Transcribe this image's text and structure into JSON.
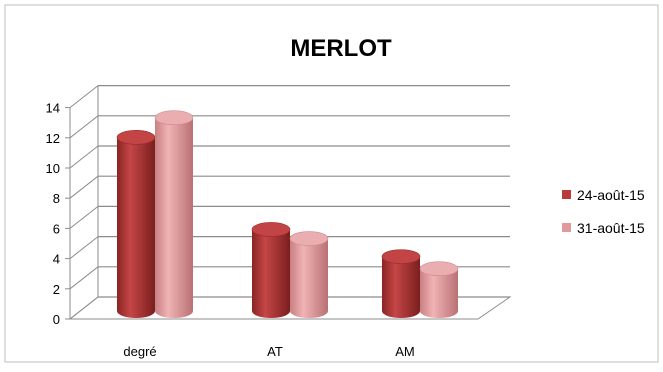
{
  "chart_data": {
    "type": "bar",
    "title": "MERLOT",
    "categories": [
      "degré",
      "AT",
      "AM"
    ],
    "series": [
      {
        "name": "24-août-15",
        "values": [
          11.5,
          5.4,
          3.6
        ],
        "color": "#b83a3a"
      },
      {
        "name": "31-août-15",
        "values": [
          12.8,
          4.8,
          2.8
        ],
        "color": "#e09a9c"
      }
    ],
    "xlabel": "",
    "ylabel": "",
    "ylim": [
      0,
      14
    ],
    "yticks": [
      0,
      2,
      4,
      6,
      8,
      10,
      12,
      14
    ],
    "grid": true,
    "legend_position": "right",
    "style": "3d-cylinder"
  }
}
